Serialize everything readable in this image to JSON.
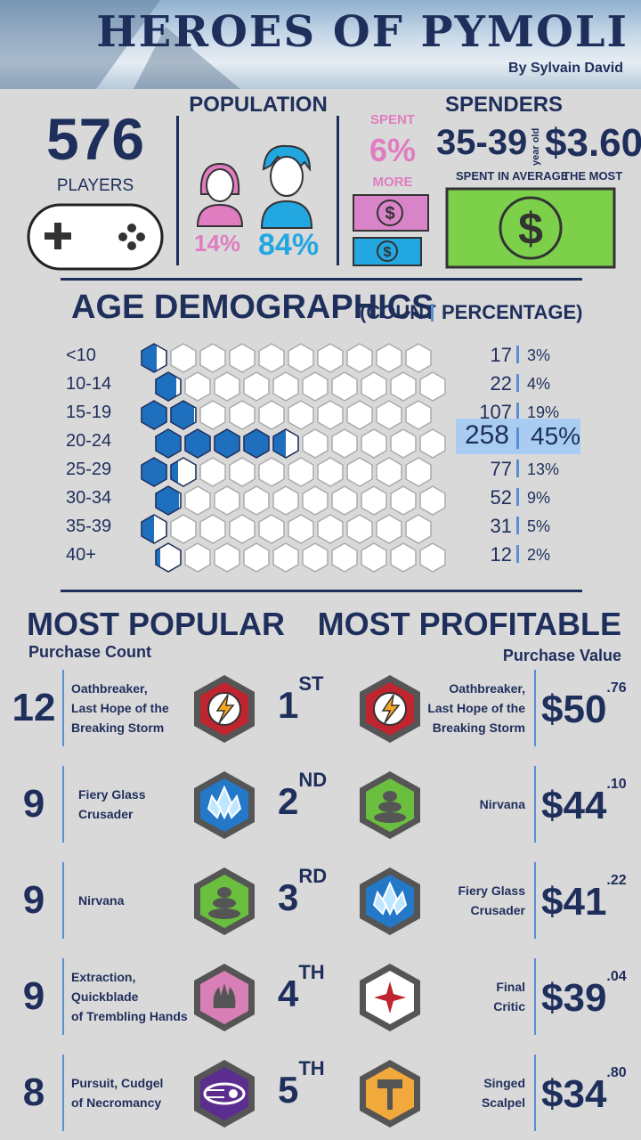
{
  "header": {
    "title": "HEROES OF PYMOLI",
    "byline": "By Sylvain David"
  },
  "players": {
    "count": "576",
    "label": "PLAYERS"
  },
  "population": {
    "title": "POPULATION",
    "female_pct": "14%",
    "male_pct": "84%"
  },
  "spent_more": {
    "line1": "SPENT",
    "pct": "6%",
    "line2": "MORE"
  },
  "spenders": {
    "title": "SPENDERS",
    "age": "35-39",
    "age_unit": "year old",
    "amount": "$3.60",
    "caption_left": "SPENT IN AVERAGE",
    "caption_right": "THE MOST"
  },
  "age_demographics": {
    "title": "AGE DEMOGRAPHICS",
    "subtitle_open": "(COUNT",
    "subtitle_close": "PERCENTAGE)",
    "rows": [
      {
        "label": "<10",
        "count": "17",
        "pct": "3%",
        "fill": 0.6
      },
      {
        "label": "10-14",
        "count": "22",
        "pct": "4%",
        "fill": 0.8
      },
      {
        "label": "15-19",
        "count": "107",
        "pct": "19%",
        "fill": 1.9
      },
      {
        "label": "20-24",
        "count": "258",
        "pct": "45%",
        "fill": 4.5
      },
      {
        "label": "25-29",
        "count": "77",
        "pct": "13%",
        "fill": 1.3
      },
      {
        "label": "30-34",
        "count": "52",
        "pct": "9%",
        "fill": 0.9
      },
      {
        "label": "35-39",
        "count": "31",
        "pct": "5%",
        "fill": 0.5
      },
      {
        "label": "40+",
        "count": "12",
        "pct": "2%",
        "fill": 0.2
      }
    ]
  },
  "most_popular": {
    "title": "MOST POPULAR",
    "subtitle": "Purchase Count"
  },
  "most_profitable": {
    "title": "MOST PROFITABLE",
    "subtitle": "Purchase Value"
  },
  "ranks": [
    {
      "ord": "1",
      "suffix": "ST",
      "popular": {
        "count": "12",
        "name": [
          "Oathbreaker,",
          "Last Hope of the",
          "Breaking Storm"
        ],
        "icon": "lightning-icon",
        "color": "#c0252f"
      },
      "profitable": {
        "dollars": "$50",
        "cents": ".76",
        "name": [
          "Oathbreaker,",
          "Last Hope of the",
          "Breaking Storm"
        ],
        "icon": "lightning-icon",
        "color": "#c0252f"
      }
    },
    {
      "ord": "2",
      "suffix": "ND",
      "popular": {
        "count": "9",
        "name": [
          "Fiery Glass",
          "Crusader"
        ],
        "icon": "crystal-icon",
        "color": "#2378c8"
      },
      "profitable": {
        "dollars": "$44",
        "cents": ".10",
        "name": [
          "Nirvana"
        ],
        "icon": "stones-icon",
        "color": "#6abf3e"
      }
    },
    {
      "ord": "3",
      "suffix": "RD",
      "popular": {
        "count": "9",
        "name": [
          "Nirvana"
        ],
        "icon": "stones-icon",
        "color": "#6abf3e"
      },
      "profitable": {
        "dollars": "$41",
        "cents": ".22",
        "name": [
          "Fiery Glass",
          "Crusader"
        ],
        "icon": "crystal-icon",
        "color": "#2378c8"
      }
    },
    {
      "ord": "4",
      "suffix": "TH",
      "popular": {
        "count": "9",
        "name": [
          "Extraction,",
          "Quickblade",
          "of Trembling Hands"
        ],
        "icon": "flame-icon",
        "color": "#d97fb8"
      },
      "profitable": {
        "dollars": "$39",
        "cents": ".04",
        "name": [
          "Final",
          "Critic"
        ],
        "icon": "star-icon",
        "color": "#ffffff"
      }
    },
    {
      "ord": "5",
      "suffix": "TH",
      "popular": {
        "count": "8",
        "name": [
          "Pursuit, Cudgel",
          "of Necromancy"
        ],
        "icon": "comet-icon",
        "color": "#5b2d8e"
      },
      "profitable": {
        "dollars": "$34",
        "cents": ".80",
        "name": [
          "Singed",
          "Scalpel"
        ],
        "icon": "hammer-icon",
        "color": "#f2a93b"
      }
    }
  ]
}
